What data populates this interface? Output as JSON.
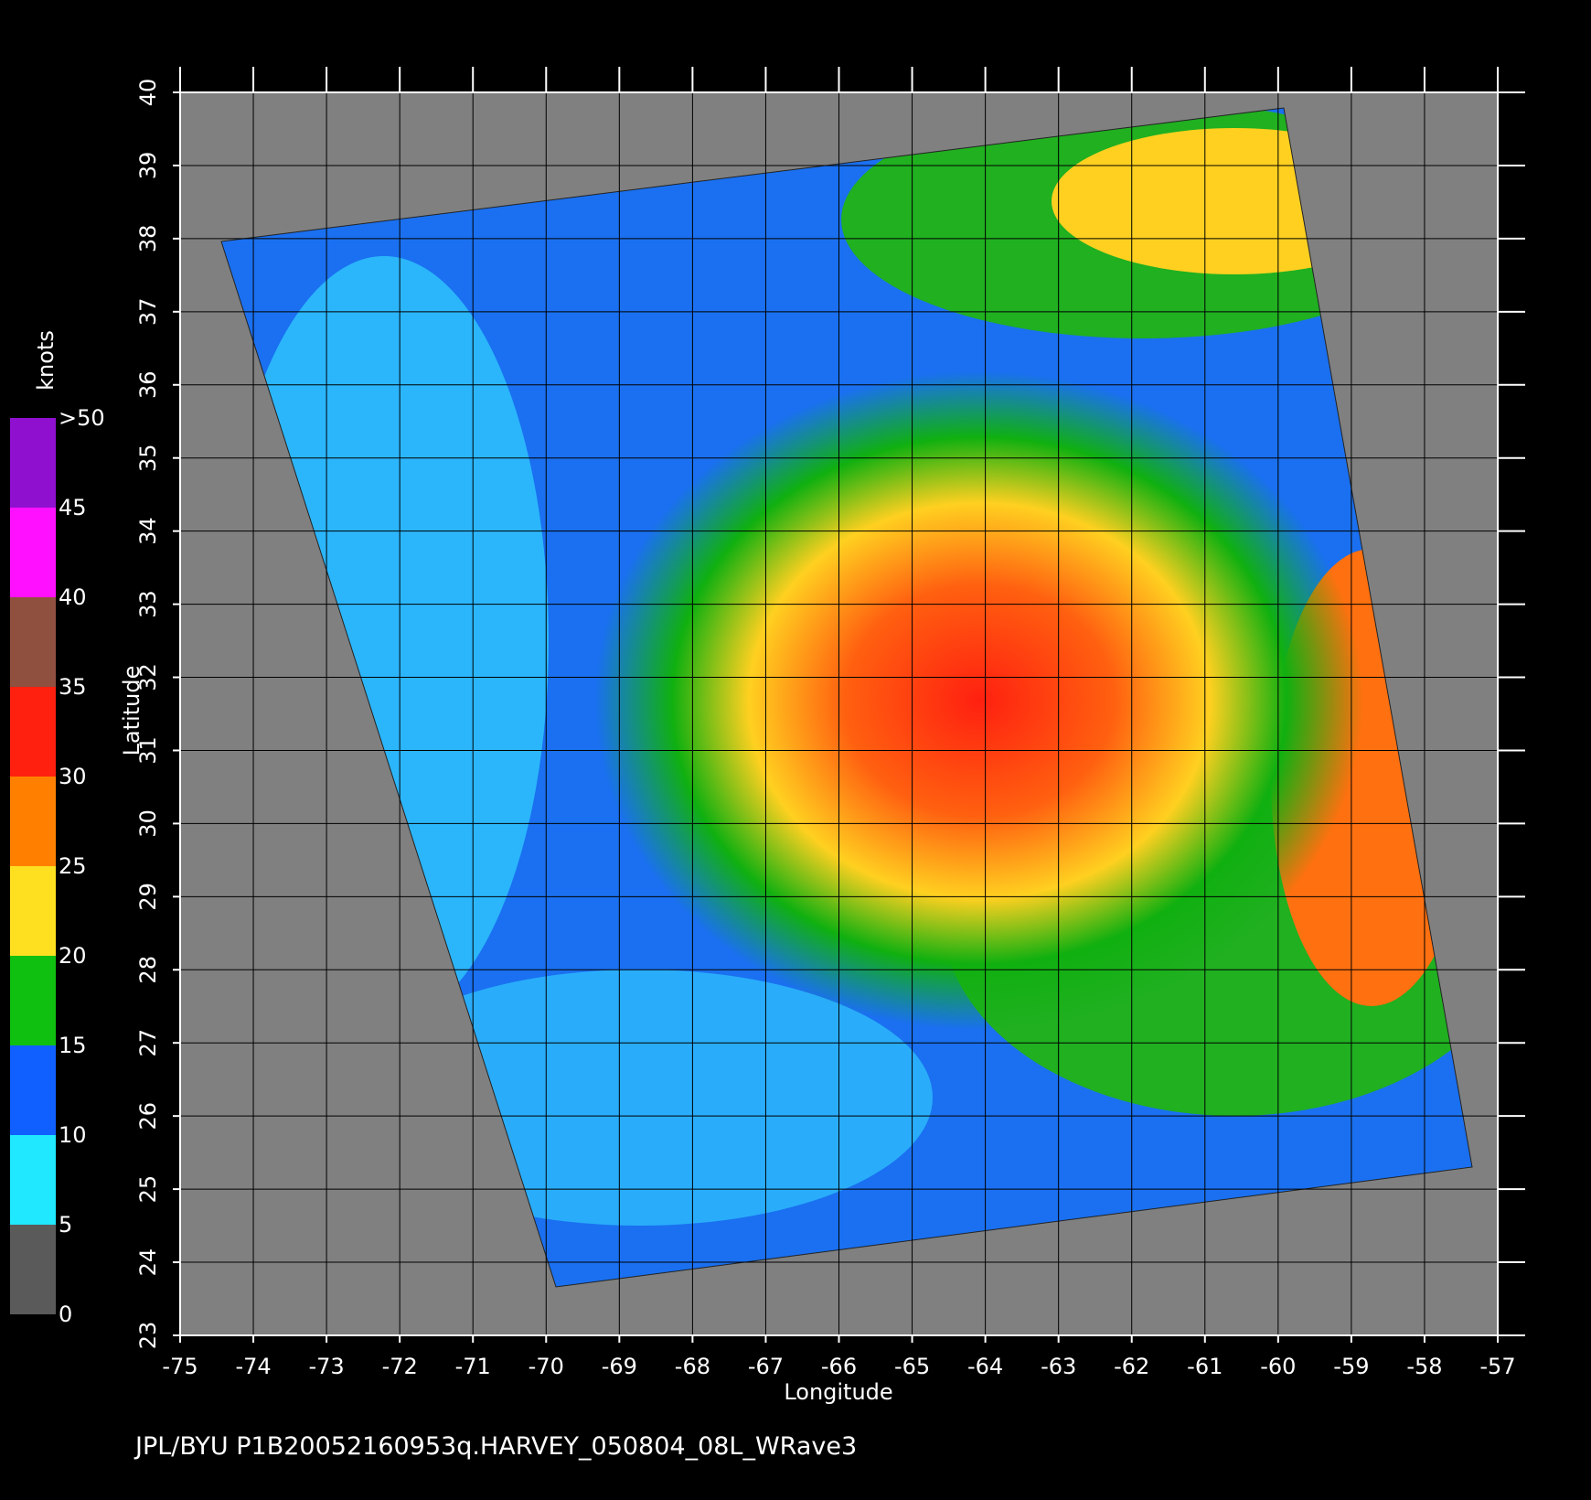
{
  "chart_data": {
    "type": "map",
    "x_label": "Longitude",
    "y_label": "Latitude",
    "xlim": [
      -75,
      -57
    ],
    "ylim": [
      23,
      40
    ],
    "xticks": [
      -75,
      -74,
      -73,
      -72,
      -71,
      -70,
      -69,
      -68,
      -67,
      -66,
      -65,
      -64,
      -63,
      -62,
      -61,
      -60,
      -59,
      -58,
      -57
    ],
    "yticks": [
      23,
      24,
      25,
      26,
      27,
      28,
      29,
      30,
      31,
      32,
      33,
      34,
      35,
      36,
      37,
      38,
      39,
      40
    ],
    "grid": true,
    "colorbar": {
      "title": "knots",
      "ticks": [
        0,
        5,
        10,
        15,
        20,
        25,
        30,
        35,
        40,
        45,
        {
          "value": 50,
          "label": ">50"
        }
      ],
      "colors": [
        "#5a5a5a",
        "#20e8ff",
        "#1060ff",
        "#10c010",
        "#ffe020",
        "#ff8000",
        "#ff2010",
        "#905040",
        "#ff10ff",
        "#9010d0"
      ]
    },
    "footer": "JPL/BYU  P1B20052160953q.HARVEY_050804_08L_WRave3"
  }
}
